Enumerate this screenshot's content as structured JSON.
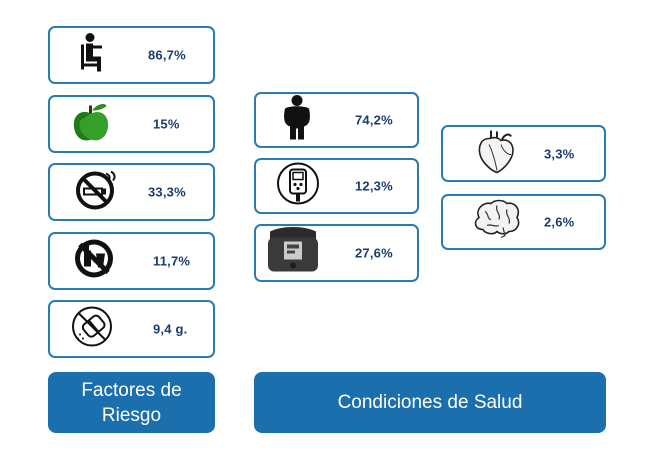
{
  "risk_factors": {
    "label": "Factores de Riesgo",
    "items": [
      {
        "icon": "sitting-person-icon",
        "value": "86,7%"
      },
      {
        "icon": "apple-icon",
        "value": "15%"
      },
      {
        "icon": "no-smoking-icon",
        "value": "33,3%"
      },
      {
        "icon": "no-alcohol-icon",
        "value": "11,7%"
      },
      {
        "icon": "no-salt-icon",
        "value": "9,4 g."
      }
    ]
  },
  "health_conditions": {
    "label": "Condiciones de Salud",
    "items": [
      {
        "icon": "obese-person-icon",
        "value": "74,2%"
      },
      {
        "icon": "glucometer-icon",
        "value": "12,3%"
      },
      {
        "icon": "blood-pressure-monitor-icon",
        "value": "27,6%"
      },
      {
        "icon": "heart-icon",
        "value": "3,3%"
      },
      {
        "icon": "brain-icon",
        "value": "2,6%"
      }
    ]
  }
}
